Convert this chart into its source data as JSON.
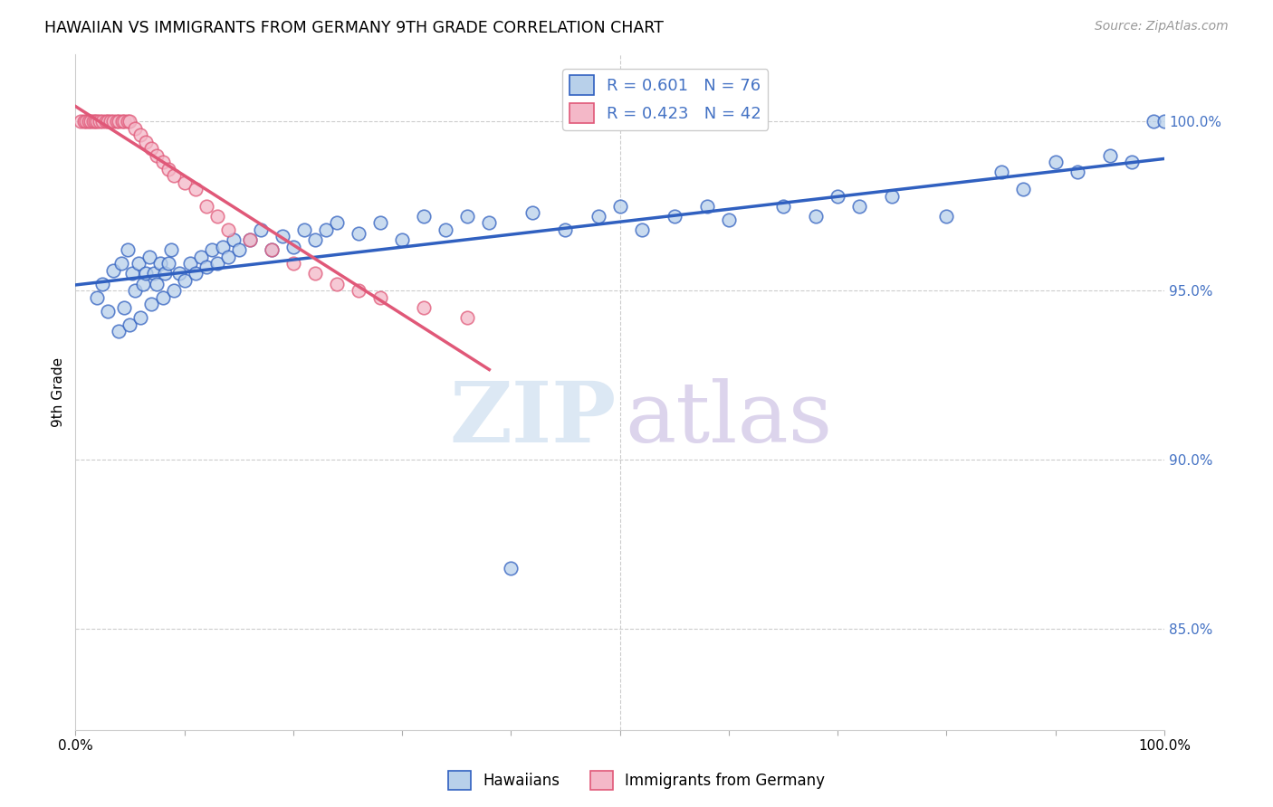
{
  "title": "HAWAIIAN VS IMMIGRANTS FROM GERMANY 9TH GRADE CORRELATION CHART",
  "source": "Source: ZipAtlas.com",
  "ylabel": "9th Grade",
  "ytick_labels": [
    "100.0%",
    "95.0%",
    "90.0%",
    "85.0%"
  ],
  "ytick_values": [
    1.0,
    0.95,
    0.9,
    0.85
  ],
  "xlim": [
    0.0,
    1.0
  ],
  "ylim": [
    0.82,
    1.02
  ],
  "legend_hawaiians": "Hawaiians",
  "legend_immigrants": "Immigrants from Germany",
  "R_hawaiians": 0.601,
  "N_hawaiians": 76,
  "R_immigrants": 0.423,
  "N_immigrants": 42,
  "hawaiians_color": "#b8d0ea",
  "immigrants_color": "#f4b8c8",
  "hawaiians_line_color": "#3060C0",
  "immigrants_line_color": "#E05878",
  "hawaiians_x": [
    0.02,
    0.025,
    0.03,
    0.035,
    0.04,
    0.042,
    0.045,
    0.048,
    0.05,
    0.052,
    0.055,
    0.058,
    0.06,
    0.062,
    0.065,
    0.068,
    0.07,
    0.072,
    0.075,
    0.078,
    0.08,
    0.082,
    0.085,
    0.088,
    0.09,
    0.095,
    0.1,
    0.105,
    0.11,
    0.115,
    0.12,
    0.125,
    0.13,
    0.135,
    0.14,
    0.145,
    0.15,
    0.16,
    0.17,
    0.18,
    0.19,
    0.2,
    0.21,
    0.22,
    0.23,
    0.24,
    0.26,
    0.28,
    0.3,
    0.32,
    0.34,
    0.36,
    0.38,
    0.4,
    0.42,
    0.45,
    0.48,
    0.5,
    0.52,
    0.55,
    0.58,
    0.6,
    0.65,
    0.68,
    0.7,
    0.72,
    0.75,
    0.8,
    0.85,
    0.87,
    0.9,
    0.92,
    0.95,
    0.97,
    0.99,
    1.0
  ],
  "hawaiians_y": [
    0.948,
    0.952,
    0.944,
    0.956,
    0.938,
    0.958,
    0.945,
    0.962,
    0.94,
    0.955,
    0.95,
    0.958,
    0.942,
    0.952,
    0.955,
    0.96,
    0.946,
    0.955,
    0.952,
    0.958,
    0.948,
    0.955,
    0.958,
    0.962,
    0.95,
    0.955,
    0.953,
    0.958,
    0.955,
    0.96,
    0.957,
    0.962,
    0.958,
    0.963,
    0.96,
    0.965,
    0.962,
    0.965,
    0.968,
    0.962,
    0.966,
    0.963,
    0.968,
    0.965,
    0.968,
    0.97,
    0.967,
    0.97,
    0.965,
    0.972,
    0.968,
    0.972,
    0.97,
    0.868,
    0.973,
    0.968,
    0.972,
    0.975,
    0.968,
    0.972,
    0.975,
    0.971,
    0.975,
    0.972,
    0.978,
    0.975,
    0.978,
    0.972,
    0.985,
    0.98,
    0.988,
    0.985,
    0.99,
    0.988,
    1.0,
    1.0
  ],
  "immigrants_x": [
    0.005,
    0.008,
    0.01,
    0.012,
    0.014,
    0.016,
    0.018,
    0.02,
    0.022,
    0.025,
    0.028,
    0.03,
    0.032,
    0.035,
    0.038,
    0.04,
    0.043,
    0.045,
    0.048,
    0.05,
    0.055,
    0.06,
    0.065,
    0.07,
    0.075,
    0.08,
    0.085,
    0.09,
    0.1,
    0.11,
    0.12,
    0.13,
    0.14,
    0.16,
    0.18,
    0.2,
    0.22,
    0.24,
    0.26,
    0.28,
    0.32,
    0.36
  ],
  "immigrants_y": [
    1.0,
    1.0,
    1.0,
    1.0,
    1.0,
    1.0,
    1.0,
    1.0,
    1.0,
    1.0,
    1.0,
    1.0,
    1.0,
    1.0,
    1.0,
    1.0,
    1.0,
    1.0,
    1.0,
    1.0,
    0.998,
    0.996,
    0.994,
    0.992,
    0.99,
    0.988,
    0.986,
    0.984,
    0.982,
    0.98,
    0.975,
    0.972,
    0.968,
    0.965,
    0.962,
    0.958,
    0.955,
    0.952,
    0.95,
    0.948,
    0.945,
    0.942
  ],
  "watermark_zip_color": "#dce8f4",
  "watermark_atlas_color": "#dcd4ec"
}
